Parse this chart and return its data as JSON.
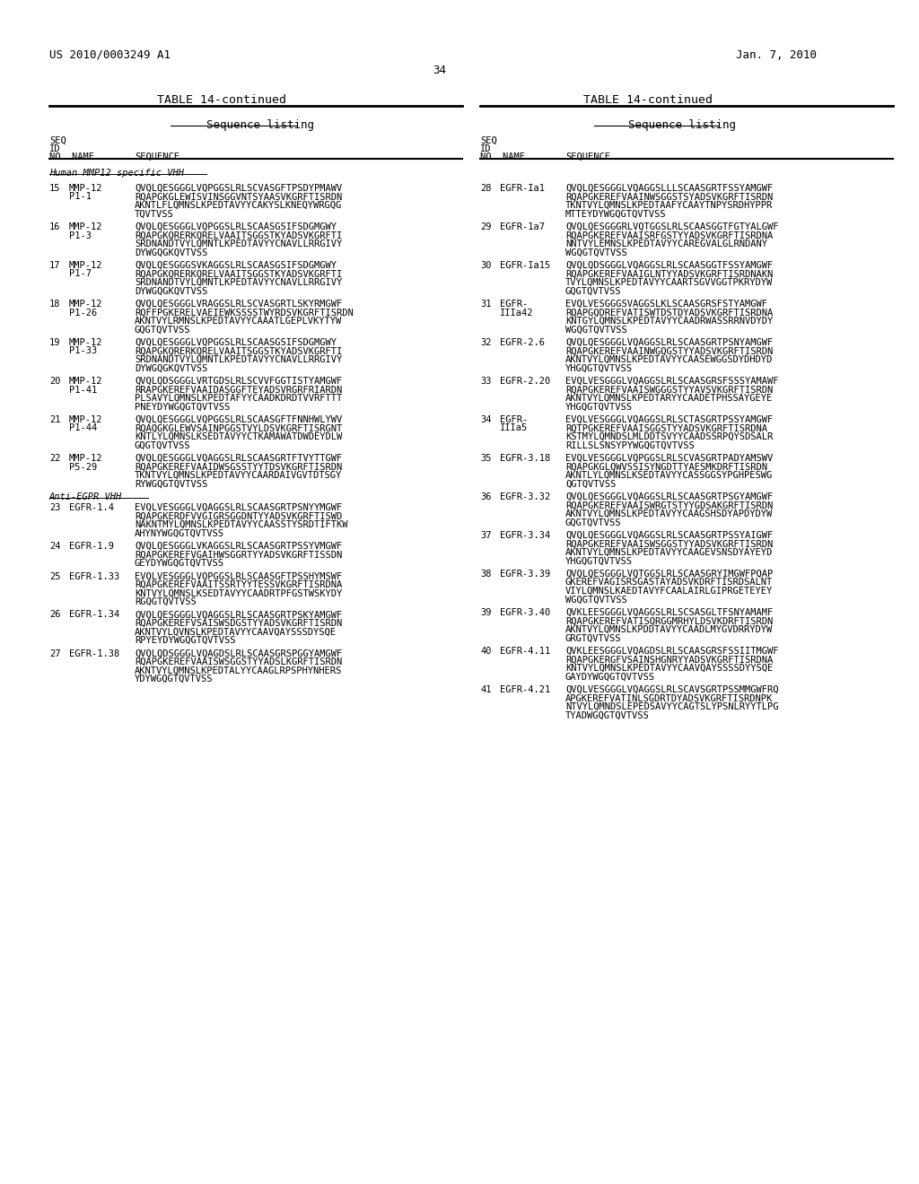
{
  "bg_color": "#ffffff",
  "header_left": "US 2010/0003249 A1",
  "header_right": "Jan. 7, 2010",
  "page_number": "34",
  "table_title": "TABLE 14-continued",
  "section_label": "Sequence listing",
  "col_headers": [
    "SEQ\nID\nNO",
    "NAME",
    "SEQUENCE"
  ],
  "left_section_header": "Human MMP12 specific VHH",
  "left_entries": [
    {
      "no": "15",
      "name": "MMP-12\nP1-1",
      "seq": "QVQLQESGGGLVQPGGSLRLSCVASGFTPSDYPMAWV\nRQAPGKGLEWISVINSGGVNTSYAASVKGRFTISRDN\nAKNTLFLQMNSLKPEDTAVYYCAKYSLKNEQYWRGQG\nTQVTVSS"
    },
    {
      "no": "16",
      "name": "MMP-12\nP1-3",
      "seq": "QVQLQESGGGLVQPGGSLRLSCAASGSIFSDGMGWY\nRQAPGKQRERKQRELVAAITSGGSTKYADSVKGRFTI\nSRDNANDTVYLQMNTLKPEDTAVYYCNAVLLRRGIVY\nDYWGQGKQVTVSS"
    },
    {
      "no": "17",
      "name": "MMP-12\nP1-7",
      "seq": "QVQLQESGGGSVKAGGSLRLSCAASGSIFSDGMGWY\nRQAPGKQRERKQRELVAAITSGGSTKYADSVKGRFTI\nSRDNANDTVYLQMNTLKPEDTAVYYCNAVLLRRGIVY\nDYWGQGKQVTVSS"
    },
    {
      "no": "18",
      "name": "MMP-12\nP1-26",
      "seq": "QVQLQESGGGLVRAGGSLRLSCVASGRTLSKYRMGWF\nRQFFPGKERELVAEIEWKSSSSTWYRDSVKGRFTISRDN\nAKNTVYLRMNSLKPEDTAVYYCAAATLGEPLVKYTYW\nGQGTQVTVSS"
    },
    {
      "no": "19",
      "name": "MMP-12\nP1-33",
      "seq": "QVQLQESGGGLVQPGGSLRLSCAASGSIFSDGMGWY\nRQAPGKQRERKQRELVAAITSGGSTKYADSVKGRFTI\nSRDNANDTVYLQMNTLKPEDTAVYYCNAVLLRRGIVY\nDYWGQGKQVTVSS"
    },
    {
      "no": "20",
      "name": "MMP-12\nP1-41",
      "seq": "QVQLQDSGGGLVRTGDSLRLSCVVFGGTISTYAMGWF\nRRAPGKEREFVAAIDASGGFTEYADSVRGRFRIARDN\nPLSAVYLQMNSLKPEDTAFYYCAADKDRDTVVRFTTT\nPNEYDYWGQGTQVTVSS"
    },
    {
      "no": "21",
      "name": "MMP-12\nP1-44",
      "seq": "QVQLQESGGGLVQPGGSLRLSCAASGFTFNNHWLYWV\nRQAQGKGLEWVSAINPGGSTVYLDSVKGRFTISRGNT\nKNTLYLQMNSLKSEDTAVYYCTKAMAWATDWDEYDLW\nGQGTQVTVSS"
    },
    {
      "no": "22",
      "name": "MMP-12\nP5-29",
      "seq": "QVQLQESGGGLVQAGGSLRLSCAASGRTFTVYTTGWF\nRQAPGKEREFVAAIDWSGSSTYYTDSVKGRFTISRDN\nTKNTVYLQMNSLKPEDTAVYYCAARDAIVGVTDTSGY\nRYWGQGTQVTVSS"
    }
  ],
  "left_section2_header": "Anti-EGPR VHH",
  "left_entries2": [
    {
      "no": "23",
      "name": "EGFR-1.4",
      "seq": "EVQLVESGGGLVQAGGSLRLSCAASGRTPSNYYMGWF\nRQAPGKERDFVVGIGRSGGDNTYYADSVKGRFTISWD\nNAKNTMYLQMNSLKPEDTAVYYCAASSTYSRDTIFTKW\nAHYNYWGQGTQVTVSS"
    },
    {
      "no": "24",
      "name": "EGFR-1.9",
      "seq": "QVQLQESGGGLVKAGGSLRLSCAASGRTPSSYVMGWF\nRQAPGKEREFVGAIHWSGGRTYYADSVKGRFTISSDN\nGEYDYWGQGTQVTVSS"
    },
    {
      "no": "25",
      "name": "EGFR-1.33",
      "seq": "EVQLVESGGGLVQPGGSLRLSCAASGFTPSSHYMSWF\nRQAPGKEREFVAAITSSRTYYTESSVKGRFTISRDNA\nKNTVYLQMNSLKSEDTAVYYCAADRTPFGSTWSKYDY\nRGQGTQVTVSS"
    },
    {
      "no": "26",
      "name": "EGFR-1.34",
      "seq": "QVQLQESGGGLVQAGGSLRLSCAASGRTPSKYAMGWF\nRQAPGKEREFVSAISWSDGSTYYADSVKGRFTISRDN\nAKNTVYLQVNSLKPEDTAVYYCAAVQAYSSSDYSQE\nRPYEYDYWGQGTQVTVSS"
    },
    {
      "no": "27",
      "name": "EGFR-1.38",
      "seq": "QVQLQDSGGGLVQAGDSLRLSCAASGRSPGGYAMGWF\nRQAPGKEREFVAAISWSGGSTYYADSLKGRFTISRDN\nAKNTVYLQMNSLKPEDTALYYCAAGLRPSPHYNHERS\nYDYWGQGTQVTVSS"
    }
  ],
  "right_entries": [
    {
      "no": "28",
      "name": "EGFR-Ia1",
      "seq": "QVQLQESGGGLVQAGGSLLLSCAASGRTFSSYAMGWF\nRQAPGKEREFVAAINWSGGSTSYADSVKGRFTISRDN\nTKNTVYLQMNSLKPEDTAAFYCAAYTNPYSRDHYPPR\nMTTEYDYWGQGTQVTVSS"
    },
    {
      "no": "29",
      "name": "EGFR-1a7",
      "seq": "QVQLQESGGGRLVQTGGSLRLSCAASGGTFGTYALGWF\nRQAPGKEREFVAAISRFGSTYYADSVKGRFTISRDNA\nNNTVYLEMNSLKPEDTAVYYCAREGVALGLRNDANY\nWGQGTQVTVSS"
    },
    {
      "no": "30",
      "name": "EGFR-Ia15",
      "seq": "QVQLQDSGGGLVQAGGSLRLSCAASGGTFSSYAMGWF\nRQAPGKEREFVAAIGLNTYYADSVKGRFTISRDNAKN\nTVYLQMNSLKPEDTAVYYCAARTSGVVGGTPKRYDYW\nGQGTQVTVSS"
    },
    {
      "no": "31",
      "name": "EGFR-\nIIIa42",
      "seq": "EVQLVESGGGSVAGGSLKLSCAASGRSFSTYAMGWF\nRQAPGQDREFVATISWTDSTDYADSVKGRFTISRDNA\nKNTGYLQMNSLKPEDTAVYYCAADRWASSRRNVDYDY\nWGQGTQVTVSS"
    },
    {
      "no": "32",
      "name": "EGFR-2.6",
      "seq": "QVQLQESGGGLVQAGGSLRLSCAASGRTPSNYAMGWF\nRQAPGKEREFVAAINWGQGSTYYADSVKGRFTISRDN\nAKNTVYLQMNSLKPEDTAVYYCAASEWGGSDYDHDYD\nYHGQGTQVTVSS"
    },
    {
      "no": "33",
      "name": "EGFR-2.20",
      "seq": "EVQLVESGGGLVQAGGSLRLSCAASGRSFSSSYAMAWF\nRQAPGKEREFVAAISWGGGSTYYAVSVKGRFTISRDN\nAKNTVYLQMNSLKPEDTARYYCAADETPHSSAYGEYE\nYHGQGTQVTVSS"
    },
    {
      "no": "34",
      "name": "EGFR-\nIIIa5",
      "seq": "EVQLVESGGGLVQAGGSLRLSCTASGRTPSSYAMGWF\nRQTPGKEREFVAAISGGSTYYADSVKGRFTISRDNA\nKSTMYLQMNDSLMLDDTSVYYCAADSSRPQYSDSALR\nRILLSLSNSYPYWGQGTQVTVSS"
    },
    {
      "no": "35",
      "name": "EGFR-3.18",
      "seq": "EVQLVESGGGLVQPGGSLRLSCVASGRTPADYAMSWV\nRQAPGKGLQWVSSISYNGDTTYAESMKDRFTISRDN\nAKNTLYLQMNSLKSEDTAVYYCASSGGSYPGHPESWG\nQGTQVTVSS"
    },
    {
      "no": "36",
      "name": "EGFR-3.32",
      "seq": "QVQLQESGGGLVQAGGSLRLSCAASGRTPSGYAMGWF\nRQAPGKEREFVAAISWRGTSTYYGDSAKGRFTISRDN\nAKNTVYLQMNSLKPEDTAVYYCAAGSHSDYAPDYDYW\nGQGTQVTVSS"
    },
    {
      "no": "37",
      "name": "EGFR-3.34",
      "seq": "QVQLQESGGGLVQAGGSLRLSCAASGRTPSSYAIGWF\nRQAPGKEREFVAAISWSGGSTYYADSVKGRFTISRDN\nAKNTVYLQMNSLKPEDTAVYYCAAGEVSNSDYAYEYD\nYHGQGTQVTVSS"
    },
    {
      "no": "38",
      "name": "EGFR-3.39",
      "seq": "QVQLQESGGGLVQTGGSLRLSCAASGRYIMGWFPQAP\nGKEREFVAGISRSGASTAYADSVKDRFTISRDSALNT\nVIYLQMNSLKAEDTAVYFCAALAIRLGIPRGETEYEY\nWGQGTQVTVSS"
    },
    {
      "no": "39",
      "name": "EGFR-3.40",
      "seq": "QVKLEESGGGLVQAGGSLRLSCSASGLTFSNYAMAMF\nRQAPGKEREFVATISQRGGMRHYLDSVKDRFTISRDN\nAKNTVYLQMNSLKPDDTAVYYCAADLMYGVDRRYDYW\nGRGTQVTVSS"
    },
    {
      "no": "40",
      "name": "EGFR-4.11",
      "seq": "QVKLEESGGGLVQAGDSLRLSCAASGRSFSSIITMGWF\nRQAPGKERGFVSAINSHGNRYYADSVKGRFTISRDNA\nKNTVYLQMNSLKPEDTAVYYCAAVQAYSSSSDYYSQE\nGAYDYWGQGTQVTVSS"
    },
    {
      "no": "41",
      "name": "EGFR-4.21",
      "seq": "QVQLVESGGGLVQAGGSLRLSCAVSGRTPSSMMGWFRQ\nAPGKEREFVATINLSGDRTDYADSVKGRFTISRDNPK\nNTVYLQMNDSLEPEDSAVYYCAGTSLYPSNLRYYTLPG\nTYADWGQGTQVTVSS"
    }
  ]
}
